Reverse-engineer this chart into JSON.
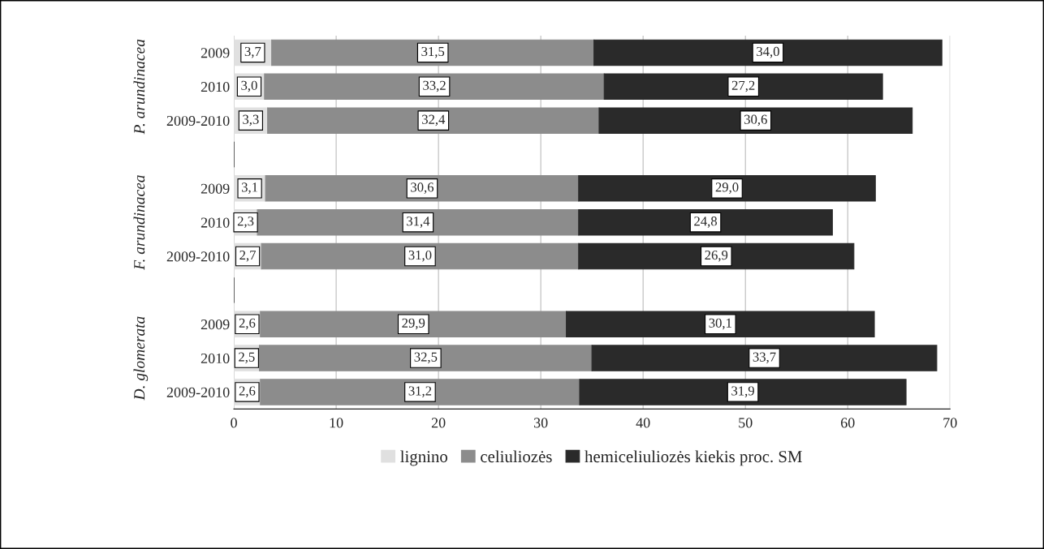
{
  "chart_data": {
    "type": "bar",
    "orientation": "horizontal",
    "stacked": true,
    "categories": [
      "2009",
      "2010",
      "2009-2010",
      null,
      "2009",
      "2010",
      "2009-2010",
      null,
      "2009",
      "2010",
      "2009-2010"
    ],
    "series": [
      {
        "name": "lignino",
        "color": "#e0e0e0",
        "values": [
          3.7,
          3.0,
          3.3,
          null,
          3.1,
          2.3,
          2.7,
          null,
          2.6,
          2.5,
          2.6
        ],
        "value_labels": [
          "3,7",
          "3,0",
          "3,3",
          null,
          "3,1",
          "2,3",
          "2,7",
          null,
          "2,6",
          "2,5",
          "2,6"
        ]
      },
      {
        "name": "celiuliozės",
        "color": "#8c8c8c",
        "values": [
          31.5,
          33.2,
          32.4,
          null,
          30.6,
          31.4,
          31.0,
          null,
          29.9,
          32.5,
          31.2
        ],
        "value_labels": [
          "31,5",
          "33,2",
          "32,4",
          null,
          "30,6",
          "31,4",
          "31,0",
          null,
          "29,9",
          "32,5",
          "31,2"
        ]
      },
      {
        "name": "hemiceliuliozės kiekis proc. SM",
        "color": "#2a2a2a",
        "values": [
          34.0,
          27.2,
          30.6,
          null,
          29.0,
          24.8,
          26.9,
          null,
          30.1,
          33.7,
          31.9
        ],
        "value_labels": [
          "34,0",
          "27,2",
          "30,6",
          null,
          "29,0",
          "24,8",
          "26,9",
          null,
          "30,1",
          "33,7",
          "31,9"
        ]
      }
    ],
    "annotations": [
      "P. arundinacea",
      "F. arundinacea",
      "D. glomerata"
    ],
    "xlim": [
      0,
      70
    ],
    "xticks": [
      0,
      10,
      20,
      30,
      40,
      50,
      60,
      70
    ],
    "grid": "x",
    "legend": "bottom"
  }
}
